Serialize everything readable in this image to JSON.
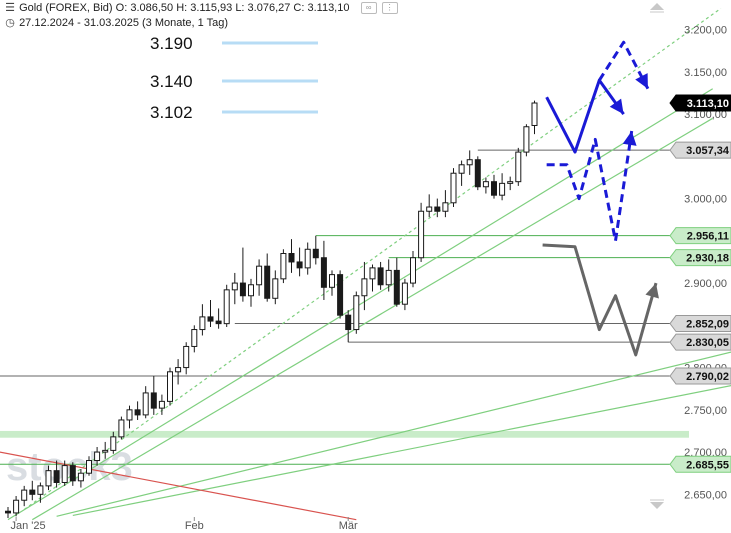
{
  "header": {
    "title": "Gold (FOREX, Bid)",
    "ohlc": "O: 3.086,50  H: 3.115,93  L: 3.076,27  C: 3.113,10",
    "range": "27.12.2024 - 31.03.2025",
    "period": "(3 Monate, 1 Tag)"
  },
  "levels_legend": [
    {
      "label": "3.190",
      "value": 3190
    },
    {
      "label": "3.140",
      "value": 3140
    },
    {
      "label": "3.102",
      "value": 3102
    }
  ],
  "watermark": "stock3",
  "colors": {
    "up_candle": "#ffffff",
    "down_candle": "#1a1a1a",
    "trend_green": "#7fcf7f",
    "trend_red": "#d9534f",
    "scenario_blue": "#1a1ad6",
    "scenario_gray": "#666666",
    "legend_line": "#b7dcf5",
    "grid_line": "#555555"
  },
  "chart_data": {
    "type": "candlestick",
    "title": "Gold (FOREX, Bid)",
    "ylim": [
      2625,
      3235
    ],
    "y_ticks": [
      {
        "label": "3.200,00",
        "value": 3200
      },
      {
        "label": "3.150,00",
        "value": 3150
      },
      {
        "label": "3.100,00",
        "value": 3100
      },
      {
        "label": "3.000,00",
        "value": 3000
      },
      {
        "label": "2.900,00",
        "value": 2900
      },
      {
        "label": "2.800,00",
        "value": 2800
      },
      {
        "label": "2.750,00",
        "value": 2750
      },
      {
        "label": "2.700,00",
        "value": 2700
      },
      {
        "label": "2.650,00",
        "value": 2650
      }
    ],
    "x_ticks": [
      {
        "label": "Jan '25",
        "index": 1
      },
      {
        "label": "Feb",
        "index": 23
      },
      {
        "label": "Mär",
        "index": 42
      }
    ],
    "price_tags": [
      {
        "label": "3.113,10",
        "value": 3113.1,
        "style": "last"
      },
      {
        "label": "3.057,34",
        "value": 3057.34,
        "style": "level"
      },
      {
        "label": "2.956,11",
        "value": 2956.11,
        "style": "green"
      },
      {
        "label": "2.930,18",
        "value": 2930.18,
        "style": "green"
      },
      {
        "label": "2.852,09",
        "value": 2852.09,
        "style": "level"
      },
      {
        "label": "2.830,05",
        "value": 2830.05,
        "style": "level"
      },
      {
        "label": "2.790,02",
        "value": 2790.02,
        "style": "level"
      },
      {
        "label": "2.685,55",
        "value": 2685.55,
        "style": "green"
      }
    ],
    "horizontal_lines": [
      {
        "value": 3057.34,
        "from": 58,
        "color": "gray"
      },
      {
        "value": 2956.11,
        "from": 38,
        "color": "green"
      },
      {
        "value": 2930.18,
        "from": 47,
        "color": "green"
      },
      {
        "value": 2852.09,
        "from": 28,
        "color": "gray"
      },
      {
        "value": 2830.05,
        "from": 42,
        "color": "gray"
      },
      {
        "value": 2790.02,
        "from": -2,
        "color": "gray"
      },
      {
        "value": 2685.55,
        "from": -2,
        "color": "green"
      }
    ],
    "zones": [
      {
        "from": 2717,
        "to": 2725,
        "color": "green"
      }
    ],
    "candles": [
      {
        "o": 2630,
        "h": 2635,
        "l": 2622,
        "c": 2628
      },
      {
        "o": 2628,
        "h": 2648,
        "l": 2624,
        "c": 2643
      },
      {
        "o": 2643,
        "h": 2660,
        "l": 2636,
        "c": 2655
      },
      {
        "o": 2655,
        "h": 2666,
        "l": 2643,
        "c": 2650
      },
      {
        "o": 2650,
        "h": 2664,
        "l": 2640,
        "c": 2660
      },
      {
        "o": 2660,
        "h": 2684,
        "l": 2655,
        "c": 2678
      },
      {
        "o": 2678,
        "h": 2690,
        "l": 2658,
        "c": 2664
      },
      {
        "o": 2664,
        "h": 2690,
        "l": 2660,
        "c": 2684
      },
      {
        "o": 2684,
        "h": 2688,
        "l": 2660,
        "c": 2666
      },
      {
        "o": 2666,
        "h": 2680,
        "l": 2658,
        "c": 2675
      },
      {
        "o": 2675,
        "h": 2695,
        "l": 2672,
        "c": 2690
      },
      {
        "o": 2690,
        "h": 2706,
        "l": 2684,
        "c": 2700
      },
      {
        "o": 2700,
        "h": 2712,
        "l": 2692,
        "c": 2702
      },
      {
        "o": 2702,
        "h": 2724,
        "l": 2698,
        "c": 2718
      },
      {
        "o": 2718,
        "h": 2742,
        "l": 2715,
        "c": 2738
      },
      {
        "o": 2738,
        "h": 2755,
        "l": 2728,
        "c": 2750
      },
      {
        "o": 2750,
        "h": 2760,
        "l": 2738,
        "c": 2744
      },
      {
        "o": 2744,
        "h": 2778,
        "l": 2740,
        "c": 2770
      },
      {
        "o": 2770,
        "h": 2790,
        "l": 2744,
        "c": 2752
      },
      {
        "o": 2752,
        "h": 2768,
        "l": 2744,
        "c": 2760
      },
      {
        "o": 2760,
        "h": 2800,
        "l": 2755,
        "c": 2795
      },
      {
        "o": 2795,
        "h": 2810,
        "l": 2780,
        "c": 2800
      },
      {
        "o": 2800,
        "h": 2830,
        "l": 2792,
        "c": 2825
      },
      {
        "o": 2825,
        "h": 2850,
        "l": 2818,
        "c": 2845
      },
      {
        "o": 2845,
        "h": 2875,
        "l": 2838,
        "c": 2860
      },
      {
        "o": 2860,
        "h": 2880,
        "l": 2848,
        "c": 2855
      },
      {
        "o": 2855,
        "h": 2870,
        "l": 2846,
        "c": 2852
      },
      {
        "o": 2852,
        "h": 2898,
        "l": 2848,
        "c": 2892
      },
      {
        "o": 2892,
        "h": 2912,
        "l": 2875,
        "c": 2900
      },
      {
        "o": 2900,
        "h": 2942,
        "l": 2878,
        "c": 2885
      },
      {
        "o": 2885,
        "h": 2905,
        "l": 2872,
        "c": 2898
      },
      {
        "o": 2898,
        "h": 2928,
        "l": 2885,
        "c": 2920
      },
      {
        "o": 2920,
        "h": 2935,
        "l": 2878,
        "c": 2882
      },
      {
        "o": 2882,
        "h": 2915,
        "l": 2875,
        "c": 2905
      },
      {
        "o": 2905,
        "h": 2940,
        "l": 2900,
        "c": 2935
      },
      {
        "o": 2935,
        "h": 2952,
        "l": 2912,
        "c": 2925
      },
      {
        "o": 2925,
        "h": 2942,
        "l": 2908,
        "c": 2918
      },
      {
        "o": 2918,
        "h": 2948,
        "l": 2910,
        "c": 2940
      },
      {
        "o": 2940,
        "h": 2956,
        "l": 2922,
        "c": 2930
      },
      {
        "o": 2930,
        "h": 2950,
        "l": 2880,
        "c": 2895
      },
      {
        "o": 2895,
        "h": 2915,
        "l": 2885,
        "c": 2910
      },
      {
        "o": 2910,
        "h": 2915,
        "l": 2858,
        "c": 2862
      },
      {
        "o": 2862,
        "h": 2868,
        "l": 2830,
        "c": 2845
      },
      {
        "o": 2845,
        "h": 2890,
        "l": 2840,
        "c": 2885
      },
      {
        "o": 2885,
        "h": 2925,
        "l": 2868,
        "c": 2905
      },
      {
        "o": 2905,
        "h": 2922,
        "l": 2890,
        "c": 2918
      },
      {
        "o": 2918,
        "h": 2925,
        "l": 2892,
        "c": 2898
      },
      {
        "o": 2898,
        "h": 2928,
        "l": 2890,
        "c": 2915
      },
      {
        "o": 2915,
        "h": 2930,
        "l": 2872,
        "c": 2875
      },
      {
        "o": 2875,
        "h": 2905,
        "l": 2868,
        "c": 2900
      },
      {
        "o": 2900,
        "h": 2938,
        "l": 2895,
        "c": 2930
      },
      {
        "o": 2930,
        "h": 2995,
        "l": 2925,
        "c": 2985
      },
      {
        "o": 2985,
        "h": 3005,
        "l": 2978,
        "c": 2990
      },
      {
        "o": 2990,
        "h": 3000,
        "l": 2978,
        "c": 2985
      },
      {
        "o": 2985,
        "h": 3010,
        "l": 2978,
        "c": 2995
      },
      {
        "o": 2995,
        "h": 3036,
        "l": 2990,
        "c": 3030
      },
      {
        "o": 3030,
        "h": 3045,
        "l": 3015,
        "c": 3040
      },
      {
        "o": 3040,
        "h": 3057,
        "l": 3028,
        "c": 3046
      },
      {
        "o": 3046,
        "h": 3050,
        "l": 3010,
        "c": 3014
      },
      {
        "o": 3014,
        "h": 3025,
        "l": 3006,
        "c": 3020
      },
      {
        "o": 3020,
        "h": 3028,
        "l": 3000,
        "c": 3004
      },
      {
        "o": 3004,
        "h": 3030,
        "l": 2998,
        "c": 3018
      },
      {
        "o": 3018,
        "h": 3026,
        "l": 3010,
        "c": 3020
      },
      {
        "o": 3020,
        "h": 3060,
        "l": 3015,
        "c": 3055
      },
      {
        "o": 3055,
        "h": 3088,
        "l": 3050,
        "c": 3085
      },
      {
        "o": 3086.5,
        "h": 3115.93,
        "l": 3076.27,
        "c": 3113.1
      }
    ]
  }
}
